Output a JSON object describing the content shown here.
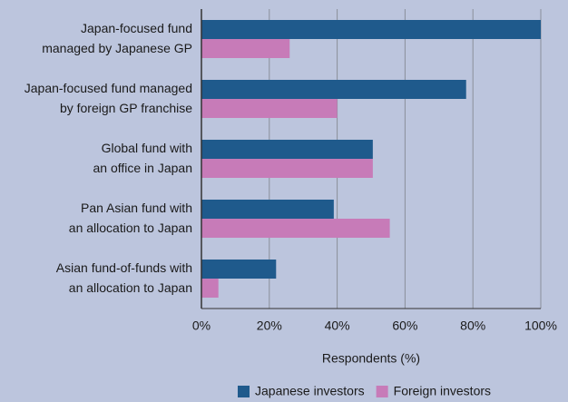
{
  "chart_data": {
    "type": "hbar",
    "categories": [
      [
        "Japan-focused fund",
        "managed by Japanese GP"
      ],
      [
        "Japan-focused fund managed",
        "by foreign GP franchise"
      ],
      [
        "Global fund with",
        "an office in Japan"
      ],
      [
        "Pan Asian fund with",
        "an allocation to Japan"
      ],
      [
        "Asian fund-of-funds with",
        "an allocation to Japan"
      ]
    ],
    "series": [
      {
        "name": "Japanese investors",
        "color": "#1f5a8c",
        "values": [
          100,
          78,
          50.5,
          39,
          22
        ]
      },
      {
        "name": "Foreign investors",
        "color": "#c77bb8",
        "values": [
          26,
          40,
          50.5,
          55.5,
          5
        ]
      }
    ],
    "xlabel": "Respondents (%)",
    "xlim": [
      0,
      100
    ],
    "xticks": [
      {
        "value": 0,
        "label": "0%"
      },
      {
        "value": 20,
        "label": "20%"
      },
      {
        "value": 40,
        "label": "40%"
      },
      {
        "value": 60,
        "label": "60%"
      },
      {
        "value": 80,
        "label": "80%"
      },
      {
        "value": 100,
        "label": "100%"
      }
    ],
    "grid": true,
    "legend": "bottom"
  }
}
